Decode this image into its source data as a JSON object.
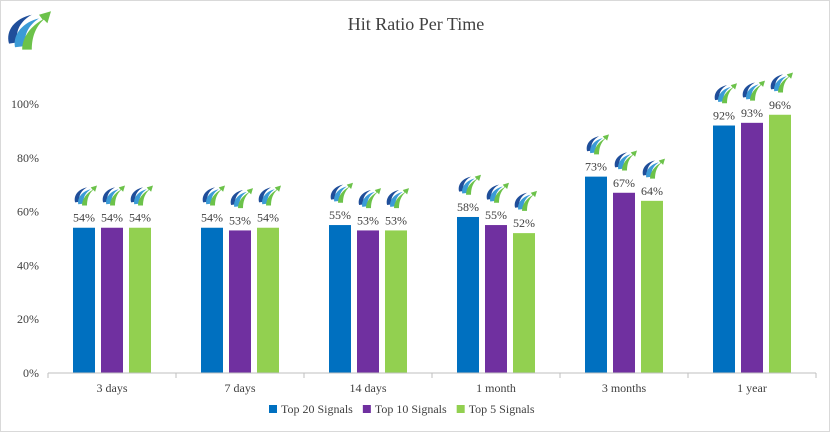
{
  "chart_data": {
    "type": "bar",
    "title": "Hit Ratio Per Time",
    "xlabel": "",
    "ylabel": "",
    "categories": [
      "3 days",
      "7 days",
      "14 days",
      "1 month",
      "3 months",
      "1 year"
    ],
    "series": [
      {
        "name": "Top 20 Signals",
        "color": "#0070C0",
        "values": [
          54,
          54,
          55,
          58,
          73,
          92
        ],
        "labels": [
          "54%",
          "54%",
          "55%",
          "58%",
          "73%",
          "92%"
        ]
      },
      {
        "name": "Top 10 Signals",
        "color": "#7030A0",
        "values": [
          54,
          53,
          53,
          55,
          67,
          93
        ],
        "labels": [
          "54%",
          "53%",
          "53%",
          "55%",
          "67%",
          "93%"
        ]
      },
      {
        "name": "Top 5 Signals",
        "color": "#92D050",
        "values": [
          54,
          54,
          53,
          52,
          64,
          96
        ],
        "labels": [
          "54%",
          "54%",
          "53%",
          "52%",
          "64%",
          "96%"
        ]
      }
    ],
    "ylim": [
      0,
      100
    ],
    "yticks": [
      0,
      20,
      40,
      60,
      80,
      100
    ],
    "ytick_labels": [
      "0%",
      "20%",
      "40%",
      "60%",
      "80%",
      "100%"
    ],
    "grid": false,
    "legend_position": "bottom",
    "marker_icon": "upward-arrow-swoosh-logo"
  },
  "logo": {
    "icon": "upward-arrow-swoosh-logo"
  }
}
